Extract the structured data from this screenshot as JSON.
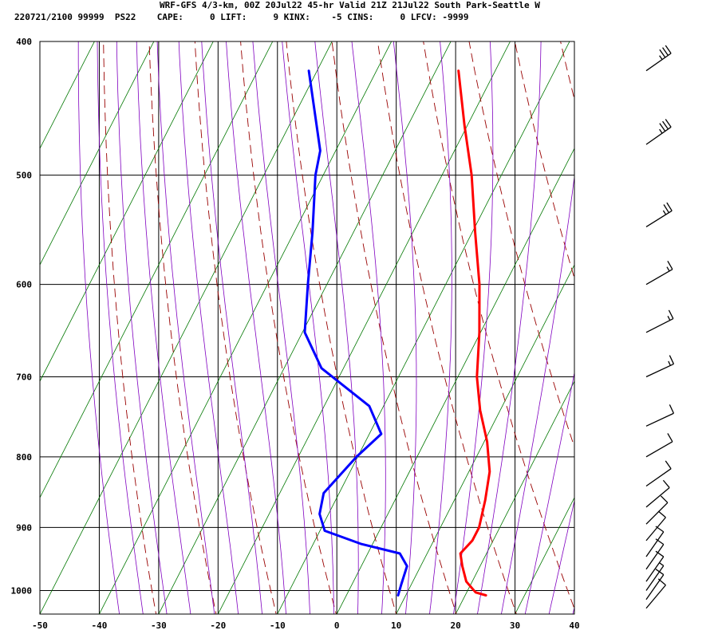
{
  "header": {
    "line1": "WRF-GFS 4/3-km, 00Z 20Jul22 45-hr Valid 21Z 21Jul22 South Park-Seattle W",
    "line2": "220721/2100 99999  PS22    CAPE:     0 LIFT:     9 KINX:    -5 CINS:     0 LFCV: -9999"
  },
  "chart_data": {
    "type": "line",
    "subtype": "skew-t log-p sounding",
    "x_ticks": [
      -50,
      -40,
      -30,
      -20,
      -10,
      0,
      10,
      20,
      30,
      40
    ],
    "x_tick_labels": [
      "-50",
      "-40",
      "-30",
      "-20",
      "-10",
      "0",
      "10",
      "20",
      "30",
      "40"
    ],
    "y_ticks": [
      400,
      500,
      600,
      700,
      800,
      900,
      1000
    ],
    "y_tick_labels": [
      "400",
      "500",
      "600",
      "700",
      "800",
      "900",
      "1000"
    ],
    "y_scale": "log",
    "ylim": [
      1040,
      400
    ],
    "xlim_at_surface": [
      -50,
      40
    ],
    "grid": true,
    "colors": {
      "temperature": "#ff0000",
      "dewpoint": "#0000ff",
      "dry_adiabat": "#990000",
      "moist_adiabat": "#8000c0",
      "isotherm_diag": "#007700",
      "wind_barb": "#000000"
    },
    "series": [
      {
        "key": "temperature",
        "points": [
          {
            "p": 1008,
            "t": 23.5
          },
          {
            "p": 1003,
            "t": 21.5
          },
          {
            "p": 985,
            "t": 19
          },
          {
            "p": 960,
            "t": 17
          },
          {
            "p": 940,
            "t": 15.6
          },
          {
            "p": 920,
            "t": 16.5
          },
          {
            "p": 900,
            "t": 16.5
          },
          {
            "p": 860,
            "t": 15.2
          },
          {
            "p": 820,
            "t": 13.5
          },
          {
            "p": 780,
            "t": 10.5
          },
          {
            "p": 740,
            "t": 6.6
          },
          {
            "p": 700,
            "t": 3.2
          },
          {
            "p": 650,
            "t": -0.2
          },
          {
            "p": 600,
            "t": -4.3
          },
          {
            "p": 550,
            "t": -9.5
          },
          {
            "p": 500,
            "t": -15
          },
          {
            "p": 460,
            "t": -20.5
          },
          {
            "p": 420,
            "t": -26.2
          }
        ]
      },
      {
        "key": "dewpoint",
        "points": [
          {
            "p": 1008,
            "t": 8.7
          },
          {
            "p": 990,
            "t": 8.3
          },
          {
            "p": 960,
            "t": 7.7
          },
          {
            "p": 940,
            "t": 5.4
          },
          {
            "p": 925,
            "t": -2
          },
          {
            "p": 905,
            "t": -9.2
          },
          {
            "p": 880,
            "t": -11.5
          },
          {
            "p": 850,
            "t": -12.6
          },
          {
            "p": 800,
            "t": -10.2
          },
          {
            "p": 770,
            "t": -8
          },
          {
            "p": 735,
            "t": -12.4
          },
          {
            "p": 690,
            "t": -23.7
          },
          {
            "p": 650,
            "t": -29.6
          },
          {
            "p": 600,
            "t": -33.2
          },
          {
            "p": 550,
            "t": -36.9
          },
          {
            "p": 500,
            "t": -41.3
          },
          {
            "p": 480,
            "t": -42.6
          },
          {
            "p": 420,
            "t": -51.4
          }
        ]
      }
    ],
    "wind_barbs": [
      {
        "p": 420,
        "dir": 235,
        "speed": 35
      },
      {
        "p": 475,
        "dir": 235,
        "speed": 35
      },
      {
        "p": 545,
        "dir": 238,
        "speed": 25
      },
      {
        "p": 600,
        "dir": 240,
        "speed": 15
      },
      {
        "p": 650,
        "dir": 243,
        "speed": 15
      },
      {
        "p": 700,
        "dir": 245,
        "speed": 15
      },
      {
        "p": 760,
        "dir": 245,
        "speed": 10
      },
      {
        "p": 800,
        "dir": 240,
        "speed": 10
      },
      {
        "p": 840,
        "dir": 235,
        "speed": 10
      },
      {
        "p": 870,
        "dir": 230,
        "speed": 10
      },
      {
        "p": 895,
        "dir": 225,
        "speed": 10
      },
      {
        "p": 920,
        "dir": 220,
        "speed": 10
      },
      {
        "p": 945,
        "dir": 215,
        "speed": 10
      },
      {
        "p": 965,
        "dir": 215,
        "speed": 10
      },
      {
        "p": 985,
        "dir": 215,
        "speed": 10
      },
      {
        "p": 1000,
        "dir": 215,
        "speed": 5
      },
      {
        "p": 1015,
        "dir": 215,
        "speed": 10
      },
      {
        "p": 1030,
        "dir": 220,
        "speed": 10
      }
    ]
  }
}
